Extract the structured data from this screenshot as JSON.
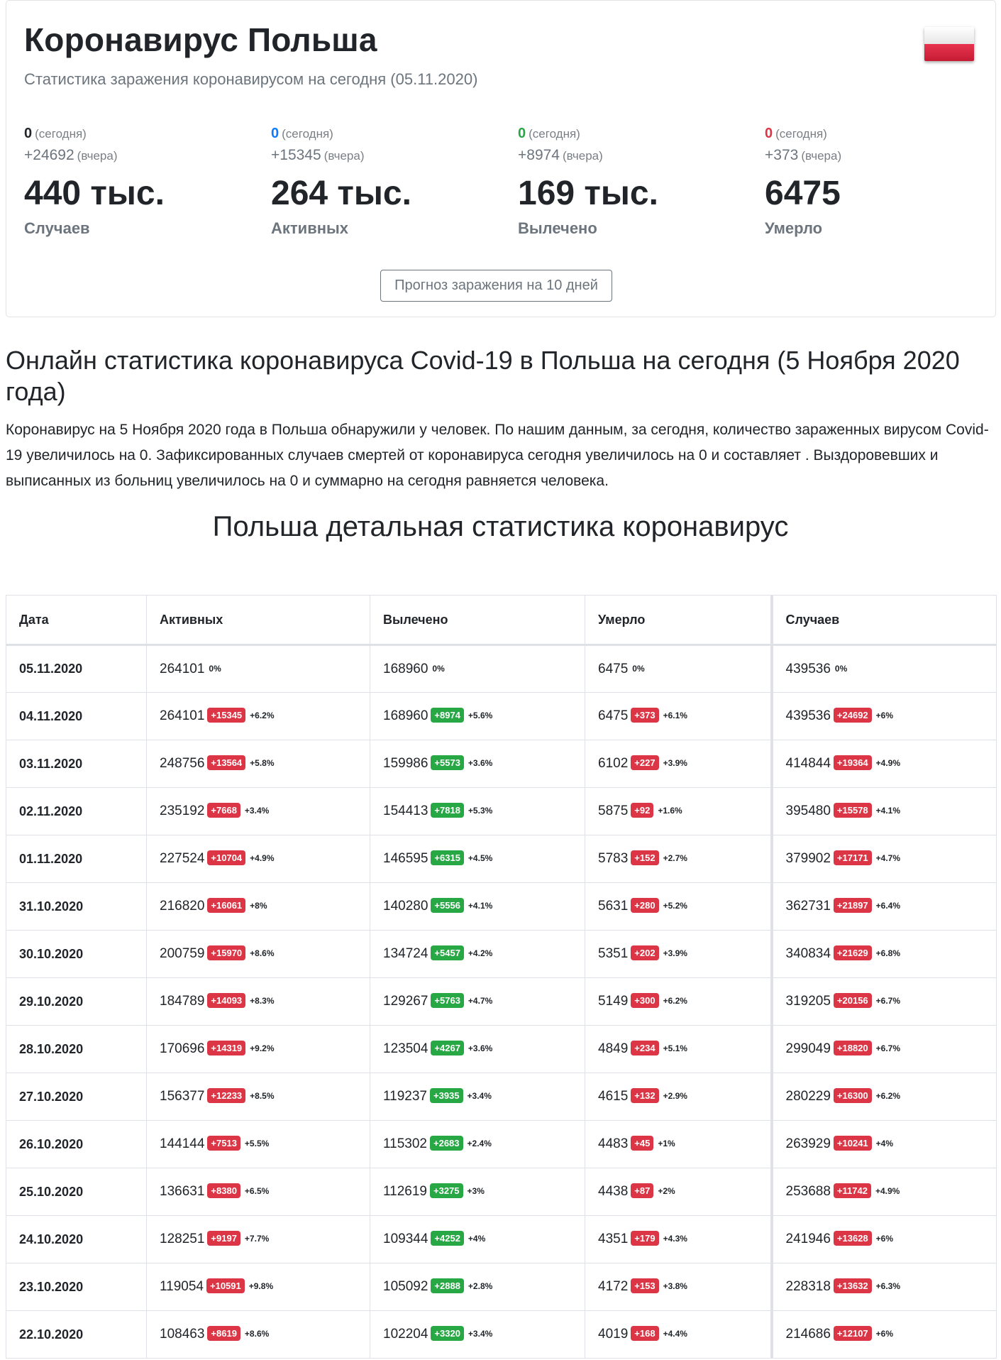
{
  "header": {
    "title": "Коронавирус Польша",
    "subtitle": "Статистика заражения коронавирусом на сегодня (05.11.2020)"
  },
  "stats": [
    {
      "today": "0",
      "today_label": "(сегодня)",
      "yesterday": "+24692",
      "yesterday_label": "(вчера)",
      "value": "440 тыс.",
      "name": "Случаев",
      "color": "#212529"
    },
    {
      "today": "0",
      "today_label": "(сегодня)",
      "yesterday": "+15345",
      "yesterday_label": "(вчера)",
      "value": "264 тыс.",
      "name": "Активных",
      "color": "#0d7bff"
    },
    {
      "today": "0",
      "today_label": "(сегодня)",
      "yesterday": "+8974",
      "yesterday_label": "(вчера)",
      "value": "169 тыс.",
      "name": "Вылечено",
      "color": "#28a745"
    },
    {
      "today": "0",
      "today_label": "(сегодня)",
      "yesterday": "+373",
      "yesterday_label": "(вчера)",
      "value": "6475",
      "name": "Умерло",
      "color": "#dc3545"
    }
  ],
  "forecast_button": "Прогноз заражения на 10 дней",
  "section": {
    "title": "Онлайн статистика коронавируса Covid-19 в Польша на сегодня (5 Ноября 2020 года)",
    "text": "Коронавирус на 5 Ноября 2020 года в Польша обнаружили у человек. По нашим данным, за сегодня, количество зараженных вирусом Covid-19 увеличилось на 0. Зафиксированных случаев смертей от коронавируса сегодня увеличилось на 0 и составляет . Выздоровевших и выписанных из больниц увеличилось на 0 и суммарно на сегодня равняется человека."
  },
  "table": {
    "title": "Польша детальная статистика коронавирус",
    "headers": [
      "Дата",
      "Активных",
      "Вылечено",
      "Умерло",
      "Случаев"
    ],
    "rows": [
      {
        "date": "05.11.2020",
        "active": [
          "264101",
          "",
          "0%"
        ],
        "recovered": [
          "168960",
          "",
          "0%"
        ],
        "died": [
          "6475",
          "",
          "0%"
        ],
        "cases": [
          "439536",
          "",
          "0%"
        ]
      },
      {
        "date": "04.11.2020",
        "active": [
          "264101",
          "+15345",
          "+6.2%"
        ],
        "recovered": [
          "168960",
          "+8974",
          "+5.6%"
        ],
        "died": [
          "6475",
          "+373",
          "+6.1%"
        ],
        "cases": [
          "439536",
          "+24692",
          "+6%"
        ]
      },
      {
        "date": "03.11.2020",
        "active": [
          "248756",
          "+13564",
          "+5.8%"
        ],
        "recovered": [
          "159986",
          "+5573",
          "+3.6%"
        ],
        "died": [
          "6102",
          "+227",
          "+3.9%"
        ],
        "cases": [
          "414844",
          "+19364",
          "+4.9%"
        ]
      },
      {
        "date": "02.11.2020",
        "active": [
          "235192",
          "+7668",
          "+3.4%"
        ],
        "recovered": [
          "154413",
          "+7818",
          "+5.3%"
        ],
        "died": [
          "5875",
          "+92",
          "+1.6%"
        ],
        "cases": [
          "395480",
          "+15578",
          "+4.1%"
        ]
      },
      {
        "date": "01.11.2020",
        "active": [
          "227524",
          "+10704",
          "+4.9%"
        ],
        "recovered": [
          "146595",
          "+6315",
          "+4.5%"
        ],
        "died": [
          "5783",
          "+152",
          "+2.7%"
        ],
        "cases": [
          "379902",
          "+17171",
          "+4.7%"
        ]
      },
      {
        "date": "31.10.2020",
        "active": [
          "216820",
          "+16061",
          "+8%"
        ],
        "recovered": [
          "140280",
          "+5556",
          "+4.1%"
        ],
        "died": [
          "5631",
          "+280",
          "+5.2%"
        ],
        "cases": [
          "362731",
          "+21897",
          "+6.4%"
        ]
      },
      {
        "date": "30.10.2020",
        "active": [
          "200759",
          "+15970",
          "+8.6%"
        ],
        "recovered": [
          "134724",
          "+5457",
          "+4.2%"
        ],
        "died": [
          "5351",
          "+202",
          "+3.9%"
        ],
        "cases": [
          "340834",
          "+21629",
          "+6.8%"
        ]
      },
      {
        "date": "29.10.2020",
        "active": [
          "184789",
          "+14093",
          "+8.3%"
        ],
        "recovered": [
          "129267",
          "+5763",
          "+4.7%"
        ],
        "died": [
          "5149",
          "+300",
          "+6.2%"
        ],
        "cases": [
          "319205",
          "+20156",
          "+6.7%"
        ]
      },
      {
        "date": "28.10.2020",
        "active": [
          "170696",
          "+14319",
          "+9.2%"
        ],
        "recovered": [
          "123504",
          "+4267",
          "+3.6%"
        ],
        "died": [
          "4849",
          "+234",
          "+5.1%"
        ],
        "cases": [
          "299049",
          "+18820",
          "+6.7%"
        ]
      },
      {
        "date": "27.10.2020",
        "active": [
          "156377",
          "+12233",
          "+8.5%"
        ],
        "recovered": [
          "119237",
          "+3935",
          "+3.4%"
        ],
        "died": [
          "4615",
          "+132",
          "+2.9%"
        ],
        "cases": [
          "280229",
          "+16300",
          "+6.2%"
        ]
      },
      {
        "date": "26.10.2020",
        "active": [
          "144144",
          "+7513",
          "+5.5%"
        ],
        "recovered": [
          "115302",
          "+2683",
          "+2.4%"
        ],
        "died": [
          "4483",
          "+45",
          "+1%"
        ],
        "cases": [
          "263929",
          "+10241",
          "+4%"
        ]
      },
      {
        "date": "25.10.2020",
        "active": [
          "136631",
          "+8380",
          "+6.5%"
        ],
        "recovered": [
          "112619",
          "+3275",
          "+3%"
        ],
        "died": [
          "4438",
          "+87",
          "+2%"
        ],
        "cases": [
          "253688",
          "+11742",
          "+4.9%"
        ]
      },
      {
        "date": "24.10.2020",
        "active": [
          "128251",
          "+9197",
          "+7.7%"
        ],
        "recovered": [
          "109344",
          "+4252",
          "+4%"
        ],
        "died": [
          "4351",
          "+179",
          "+4.3%"
        ],
        "cases": [
          "241946",
          "+13628",
          "+6%"
        ]
      },
      {
        "date": "23.10.2020",
        "active": [
          "119054",
          "+10591",
          "+9.8%"
        ],
        "recovered": [
          "105092",
          "+2888",
          "+2.8%"
        ],
        "died": [
          "4172",
          "+153",
          "+3.8%"
        ],
        "cases": [
          "228318",
          "+13632",
          "+6.3%"
        ]
      },
      {
        "date": "22.10.2020",
        "active": [
          "108463",
          "+8619",
          "+8.6%"
        ],
        "recovered": [
          "102204",
          "+3320",
          "+3.4%"
        ],
        "died": [
          "4019",
          "+168",
          "+4.4%"
        ],
        "cases": [
          "214686",
          "+12107",
          "+6%"
        ]
      }
    ]
  }
}
